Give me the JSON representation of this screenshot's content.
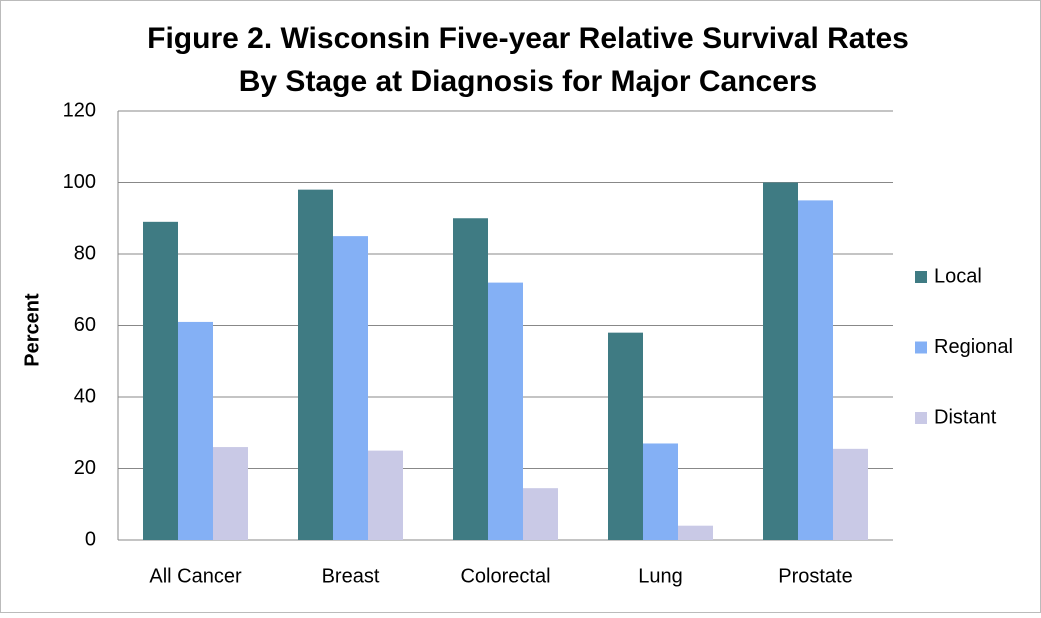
{
  "chart_data": {
    "type": "bar",
    "title": [
      "Figure 2. Wisconsin Five-year Relative Survival Rates",
      "By Stage at Diagnosis for Major Cancers"
    ],
    "y_label": "Percent",
    "categories": [
      "All Cancer",
      "Breast",
      "Colorectal",
      "Lung",
      "Prostate"
    ],
    "series": [
      {
        "name": "Local",
        "color": "#3f7b83",
        "values": [
          89,
          98,
          90,
          58,
          100
        ]
      },
      {
        "name": "Regional",
        "color": "#84b0f5",
        "values": [
          61,
          85,
          72,
          27,
          95
        ]
      },
      {
        "name": "Distant",
        "color": "#c9c9e6",
        "values": [
          26,
          25,
          14.5,
          4,
          25.5
        ]
      }
    ],
    "ylim": [
      0,
      120
    ],
    "yticks": [
      0,
      20,
      40,
      60,
      80,
      100,
      120
    ],
    "grid": true,
    "legend": "right"
  }
}
